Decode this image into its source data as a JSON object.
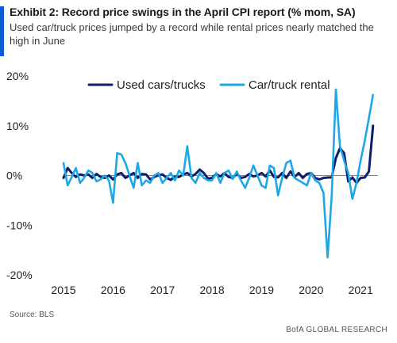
{
  "header": {
    "title": "Exhibit 2: Record price swings in the April CPI report (% mom, SA)",
    "subtitle": "Used car/truck prices jumped by a record while rental prices nearly matched the high in June"
  },
  "footer": {
    "source": "Source:  BLS",
    "brand": "BofA GLOBAL RESEARCH"
  },
  "colors": {
    "accent": "#0b5bd3",
    "used_cars": "#0c1f6b",
    "rental": "#1ea7e8",
    "axis": "#888888",
    "text": "#222222"
  },
  "chart_data": {
    "type": "line",
    "title": "Exhibit 2: Record price swings in the April CPI report (% mom, SA)",
    "xlabel": "",
    "ylabel": "",
    "xlim": [
      2015.0,
      2021.35
    ],
    "ylim": [
      -20,
      20
    ],
    "yticks": [
      20,
      10,
      0,
      -10,
      -20
    ],
    "ytick_labels": [
      "20%",
      "10%",
      "0%",
      "-10%",
      "-20%"
    ],
    "xticks": [
      2015,
      2016,
      2017,
      2018,
      2019,
      2020,
      2021
    ],
    "xtick_labels": [
      "2015",
      "2016",
      "2017",
      "2018",
      "2019",
      "2020",
      "2021"
    ],
    "grid": false,
    "legend_position": "top",
    "start": "2015-01",
    "x_units": "year",
    "series": [
      {
        "name": "Used cars/trucks",
        "color": "#0c1f6b",
        "values": [
          -0.5,
          1.5,
          0.5,
          -0.3,
          0.2,
          0.0,
          0.2,
          -0.5,
          0.3,
          -0.3,
          -0.5,
          0.0,
          -0.8,
          0.2,
          0.5,
          -0.5,
          0.0,
          0.5,
          -0.5,
          0.3,
          0.2,
          -0.8,
          -0.3,
          0.0,
          0.2,
          -0.5,
          -0.9,
          -0.2,
          -0.3,
          0.2,
          0.5,
          -0.2,
          0.3,
          1.2,
          0.5,
          -0.6,
          -0.5,
          0.3,
          -0.2,
          0.5,
          -0.3,
          -0.5,
          0.3,
          -0.5,
          -0.3,
          0.3,
          -0.2,
          0.0,
          0.5,
          -0.2,
          1.0,
          -0.3,
          -0.4,
          0.5,
          -0.5,
          0.8,
          -0.3,
          0.5,
          -0.5,
          0.3,
          0.5,
          -0.5,
          -0.8,
          -0.5,
          -0.4,
          -0.4,
          3.5,
          5.5,
          4.5,
          -1.2,
          -0.4,
          -1.5,
          -0.5,
          -0.4,
          0.8,
          10.0
        ]
      },
      {
        "name": "Car/truck rental",
        "color": "#1ea7e8",
        "values": [
          2.5,
          -2.0,
          -0.3,
          1.5,
          -1.5,
          -0.5,
          1.0,
          0.5,
          -1.2,
          -0.8,
          0.0,
          -1.0,
          -5.5,
          4.5,
          4.2,
          2.5,
          0.0,
          -2.5,
          2.5,
          -2.0,
          -1.0,
          -1.5,
          0.0,
          0.5,
          -1.5,
          -0.5,
          0.5,
          -1.0,
          1.0,
          0.0,
          5.9,
          -0.5,
          -1.5,
          0.5,
          -0.5,
          -1.0,
          -1.0,
          0.5,
          -1.5,
          0.5,
          1.0,
          -0.7,
          0.8,
          -1.0,
          -2.5,
          -0.5,
          2.0,
          0.0,
          -2.0,
          -2.5,
          2.0,
          1.5,
          -4.0,
          -0.5,
          2.5,
          3.0,
          -0.5,
          -1.0,
          -1.5,
          -2.0,
          0.5,
          -1.0,
          -1.5,
          -3.5,
          -16.5,
          -4.0,
          17.3,
          5.8,
          3.0,
          0.5,
          -4.7,
          -1.5,
          3.0,
          7.0,
          11.5,
          16.2
        ]
      }
    ]
  }
}
